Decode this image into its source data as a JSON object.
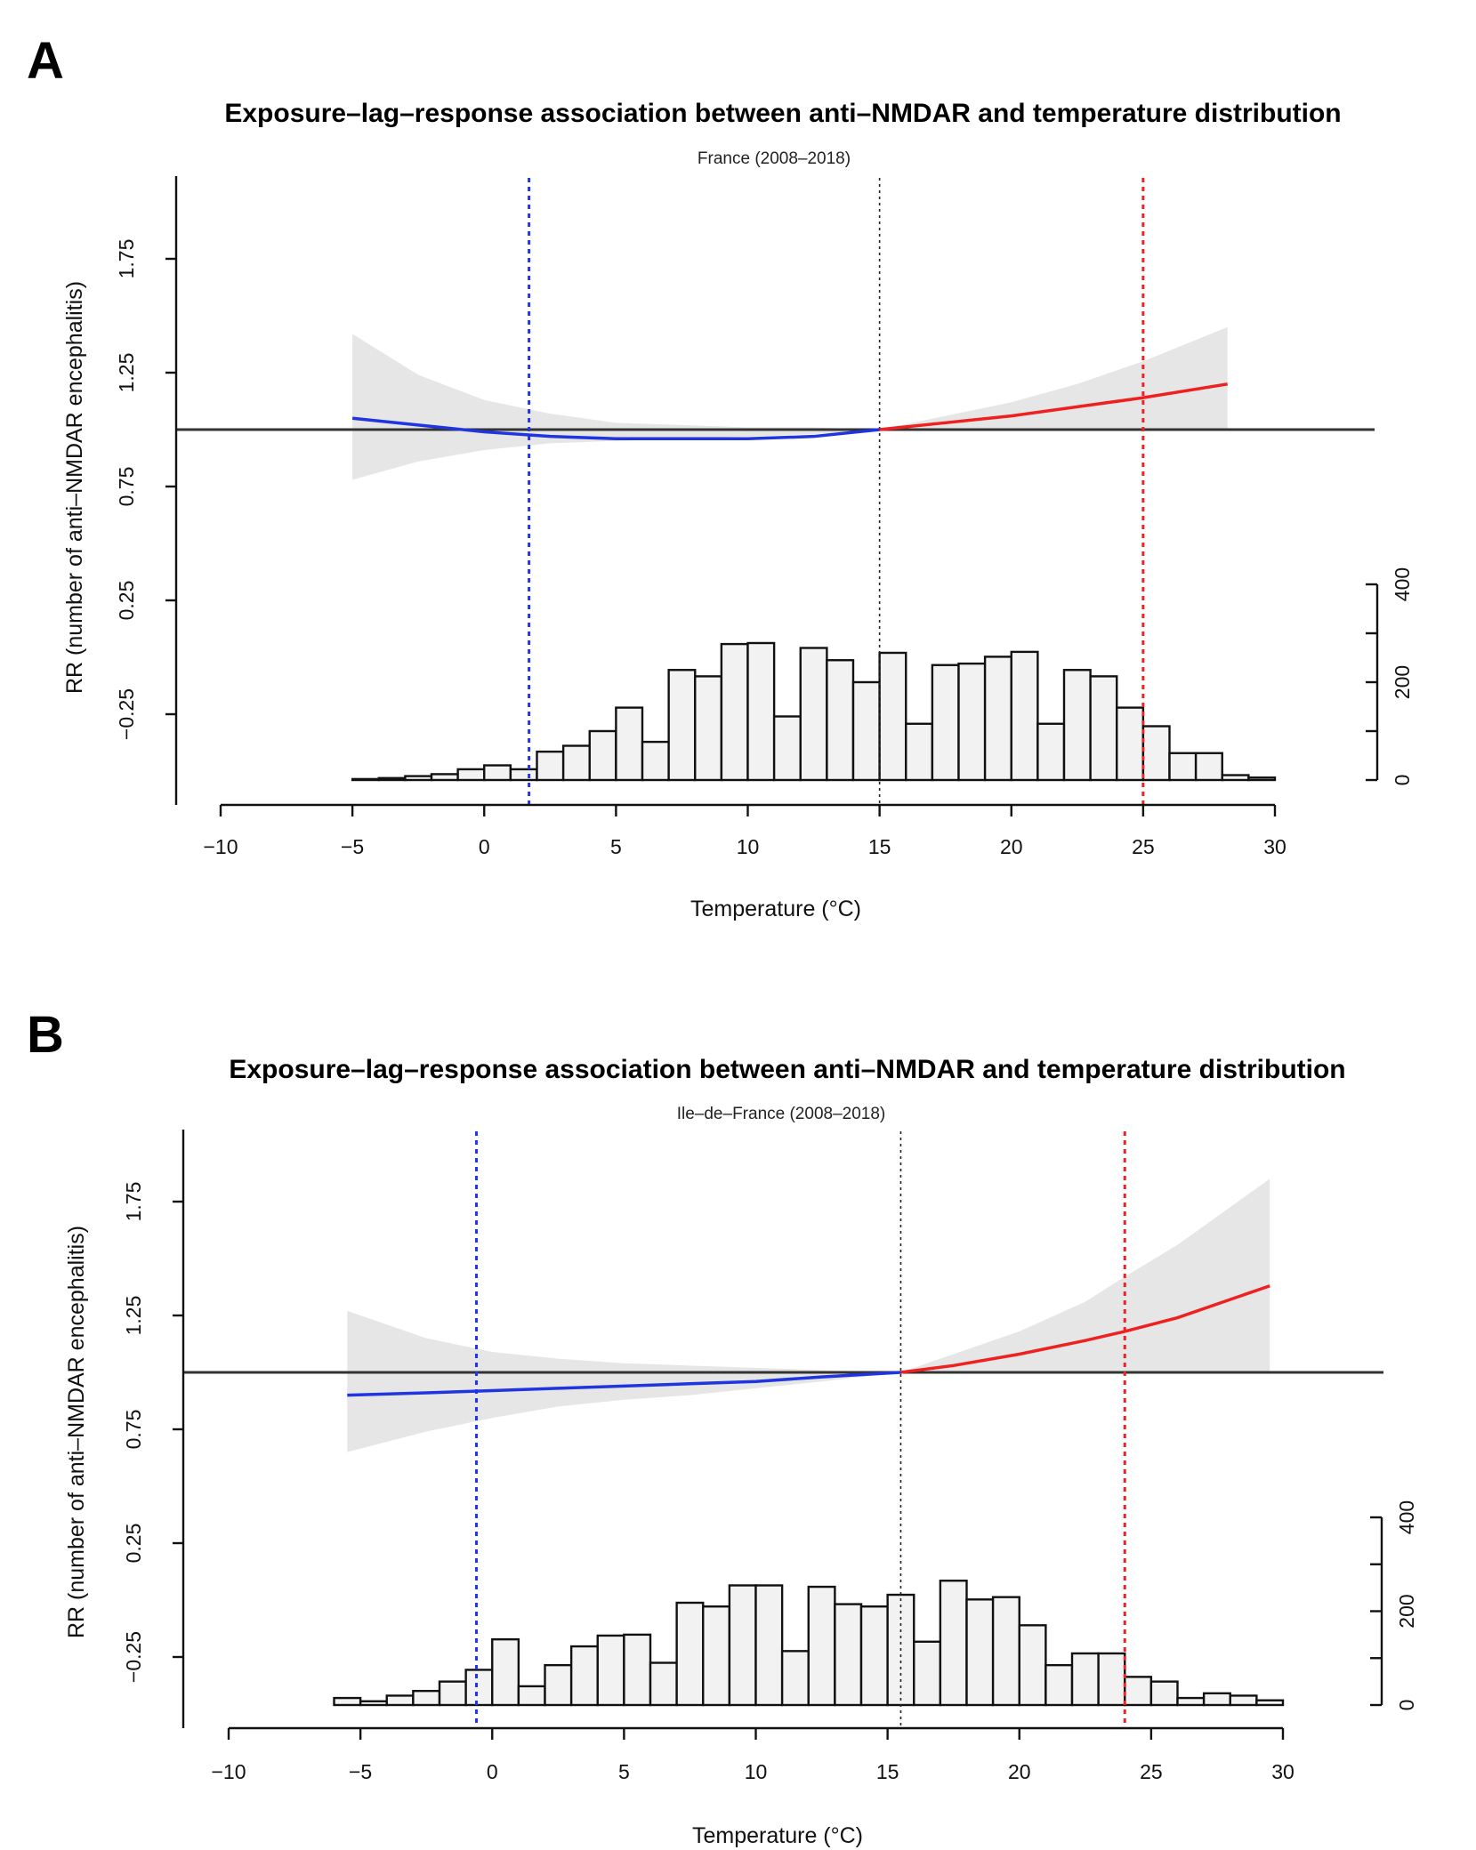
{
  "chart_data": [
    {
      "panel": "A",
      "type": "line",
      "title": "Exposure–lag–response association between anti–NMDAR and temperature distribution",
      "subtitle": "France (2008–2018)",
      "xlabel": "Temperature (°C)",
      "ylabel": "RR (number of anti–NMDAR encephalitis)",
      "xlim": [
        -10,
        30
      ],
      "x_ticks": [
        "−10",
        "−5",
        "0",
        "5",
        "10",
        "15",
        "20",
        "25",
        "30"
      ],
      "ylim": [
        -0.55,
        2.0
      ],
      "y_ticks": [
        "−0.25",
        "0.25",
        "0.75",
        "1.25",
        "1.75"
      ],
      "reference_line": 1.0,
      "vlines": {
        "cold": 1.7,
        "mmt": 15.0,
        "hot": 25.0
      },
      "curve_cold": {
        "x": [
          -5,
          -2.5,
          0,
          2.5,
          5,
          7.5,
          10,
          12.5,
          15
        ],
        "y": [
          1.05,
          1.02,
          0.99,
          0.97,
          0.96,
          0.96,
          0.96,
          0.97,
          1.0
        ]
      },
      "curve_hot": {
        "x": [
          15,
          17.5,
          20,
          22.5,
          25,
          28.2
        ],
        "y": [
          1.0,
          1.03,
          1.06,
          1.1,
          1.14,
          1.2
        ]
      },
      "ci_band": {
        "x": [
          -5,
          -2.5,
          0,
          2.5,
          5,
          7.5,
          10,
          12.5,
          15,
          17.5,
          20,
          22.5,
          25,
          28.2
        ],
        "lower": [
          0.78,
          0.86,
          0.91,
          0.94,
          0.95,
          0.96,
          0.97,
          0.98,
          1.0,
          1.0,
          1.0,
          1.0,
          1.0,
          1.0
        ],
        "upper": [
          1.42,
          1.24,
          1.13,
          1.07,
          1.03,
          1.02,
          1.01,
          1.01,
          1.0,
          1.06,
          1.12,
          1.2,
          1.3,
          1.45
        ]
      },
      "histogram": {
        "axis_ticks": [
          "0",
          "200",
          "400"
        ],
        "count_max": 400,
        "bin_start": -5,
        "bin_width": 1,
        "counts": [
          2,
          4,
          8,
          12,
          22,
          30,
          22,
          58,
          70,
          100,
          148,
          78,
          225,
          212,
          278,
          280,
          130,
          270,
          245,
          200,
          260,
          115,
          235,
          238,
          252,
          262,
          115,
          225,
          212,
          148,
          110,
          55,
          55,
          10,
          5
        ]
      }
    },
    {
      "panel": "B",
      "type": "line",
      "title": "Exposure–lag–response association between anti–NMDAR and temperature distribution",
      "subtitle": "Ile–de–France (2008–2018)",
      "xlabel": "Temperature (°C)",
      "ylabel": "RR (number of anti–NMDAR encephalitis)",
      "xlim": [
        -10,
        30
      ],
      "x_ticks": [
        "−10",
        "−5",
        "0",
        "5",
        "10",
        "15",
        "20",
        "25",
        "30"
      ],
      "ylim": [
        -0.55,
        2.0
      ],
      "y_ticks": [
        "−0.25",
        "0.25",
        "0.75",
        "1.25",
        "1.75"
      ],
      "reference_line": 1.0,
      "vlines": {
        "cold": -0.6,
        "mmt": 15.5,
        "hot": 24.0
      },
      "curve_cold": {
        "x": [
          -5.5,
          -2.5,
          0,
          2.5,
          5,
          7.5,
          10,
          12.5,
          15.5
        ],
        "y": [
          0.9,
          0.91,
          0.92,
          0.93,
          0.94,
          0.95,
          0.96,
          0.98,
          1.0
        ]
      },
      "curve_hot": {
        "x": [
          15.5,
          17.5,
          20,
          22.5,
          24,
          26,
          29.5
        ],
        "y": [
          1.0,
          1.03,
          1.08,
          1.14,
          1.18,
          1.24,
          1.38
        ]
      },
      "ci_band": {
        "x": [
          -5.5,
          -2.5,
          0,
          2.5,
          5,
          7.5,
          10,
          12.5,
          15.5,
          17.5,
          20,
          22.5,
          24,
          26,
          29.5
        ],
        "lower": [
          0.65,
          0.74,
          0.8,
          0.85,
          0.88,
          0.9,
          0.93,
          0.96,
          1.0,
          1.0,
          1.0,
          1.0,
          1.0,
          1.0,
          1.0
        ],
        "upper": [
          1.27,
          1.15,
          1.09,
          1.06,
          1.04,
          1.03,
          1.02,
          1.01,
          1.0,
          1.08,
          1.18,
          1.31,
          1.42,
          1.56,
          1.85
        ]
      },
      "histogram": {
        "axis_ticks": [
          "0",
          "200",
          "400"
        ],
        "count_max": 400,
        "bin_start": -6,
        "bin_width": 1,
        "counts": [
          15,
          8,
          20,
          30,
          50,
          75,
          140,
          40,
          85,
          125,
          148,
          150,
          90,
          218,
          210,
          255,
          255,
          115,
          252,
          215,
          210,
          235,
          135,
          265,
          225,
          230,
          170,
          85,
          110,
          110,
          60,
          50,
          15,
          25,
          20,
          10
        ]
      }
    }
  ]
}
